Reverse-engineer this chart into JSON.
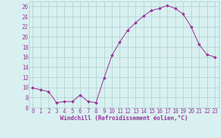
{
  "x": [
    0,
    1,
    2,
    3,
    4,
    5,
    6,
    7,
    8,
    9,
    10,
    11,
    12,
    13,
    14,
    15,
    16,
    17,
    18,
    19,
    20,
    21,
    22,
    23
  ],
  "y": [
    9.9,
    9.5,
    9.2,
    7.0,
    7.2,
    7.2,
    8.5,
    7.2,
    7.0,
    11.8,
    16.3,
    19.0,
    21.3,
    22.8,
    24.1,
    25.2,
    25.6,
    26.2,
    25.6,
    24.5,
    22.0,
    18.5,
    16.5,
    16.0
  ],
  "line_color": "#993399",
  "marker": "D",
  "marker_size": 2.0,
  "bg_color": "#d8f0f0",
  "grid_color": "#aacccc",
  "xlabel": "Windchill (Refroidissement éolien,°C)",
  "xlabel_color": "#993399",
  "xlabel_fontsize": 6.0,
  "tick_color": "#993399",
  "tick_fontsize": 5.5,
  "ylim": [
    6,
    27
  ],
  "yticks": [
    6,
    8,
    10,
    12,
    14,
    16,
    18,
    20,
    22,
    24,
    26
  ],
  "xlim": [
    -0.5,
    23.5
  ]
}
